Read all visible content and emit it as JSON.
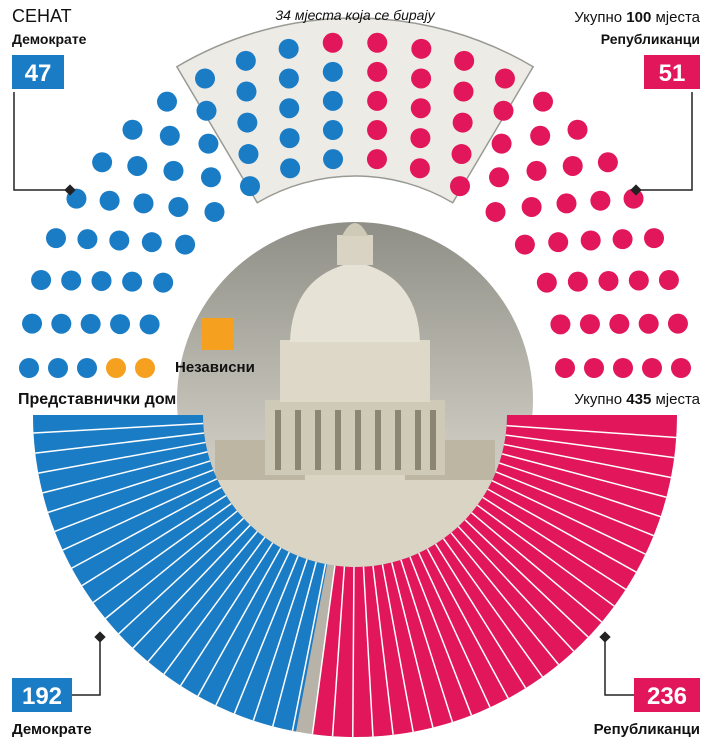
{
  "chart_data": [
    {
      "type": "parliament",
      "title": "СЕНАТ",
      "total_prefix": "Укупно",
      "total": 100,
      "total_suffix": "мјеста",
      "election_count": 34,
      "election_label": "мјеста која се бирају",
      "series": [
        {
          "name": "Независни",
          "color": "#f5a01e",
          "value": 2
        },
        {
          "name": "Демократе",
          "color": "#1b7cc6",
          "value": 47
        },
        {
          "name": "Републиканци",
          "color": "#e2175b",
          "value": 51
        }
      ]
    },
    {
      "type": "hemicycle",
      "title": "Представнички дом",
      "total_prefix": "Укупно",
      "total": 435,
      "total_suffix": "мјеста",
      "series": [
        {
          "name": "Демократе",
          "color": "#1b7cc6",
          "value": 192
        },
        {
          "name": "Републиканци",
          "color": "#e2175b",
          "value": 236
        }
      ]
    }
  ]
}
